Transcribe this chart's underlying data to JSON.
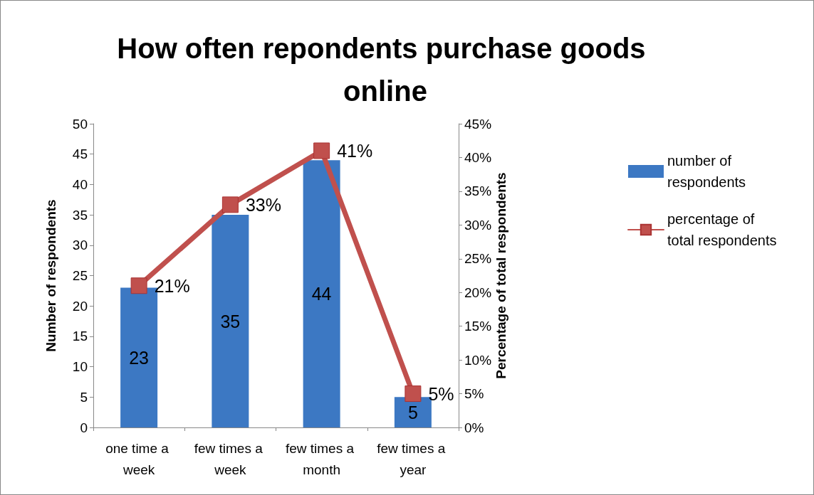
{
  "chart_data": {
    "type": "bar",
    "title": "How often repondents purchase goods online",
    "ylabel": "Number of respondents",
    "y2label": "Percentage of total respondents",
    "categories": [
      "one time a week",
      "few times a week",
      "few times a month",
      "few times a year"
    ],
    "series": [
      {
        "name": "number of respondents",
        "color": "#3c78c3",
        "values": [
          23,
          35,
          44,
          5
        ],
        "value_labels": [
          "23",
          "35",
          "44",
          "5"
        ]
      },
      {
        "name": "percentage of total respondents",
        "type": "line",
        "axis": "y2",
        "color": "#c0504d",
        "values": [
          21,
          33,
          41,
          5
        ],
        "value_labels": [
          "21%",
          "33%",
          "41%",
          "5%"
        ]
      }
    ],
    "ylim": [
      0,
      50
    ],
    "yticks": [
      0,
      5,
      10,
      15,
      20,
      25,
      30,
      35,
      40,
      45,
      50
    ],
    "y2lim": [
      0,
      45
    ],
    "y2ticks": [
      {
        "value": 0,
        "label": "0%"
      },
      {
        "value": 5,
        "label": "5%"
      },
      {
        "value": 10,
        "label": "10%"
      },
      {
        "value": 15,
        "label": "15%"
      },
      {
        "value": 20,
        "label": "20%"
      },
      {
        "value": 25,
        "label": "25%"
      },
      {
        "value": 30,
        "label": "30%"
      },
      {
        "value": 35,
        "label": "35%"
      },
      {
        "value": 40,
        "label": "40%"
      },
      {
        "value": 45,
        "label": "45%"
      }
    ],
    "grid": false,
    "legend": "right",
    "marker": "square",
    "line_style": "solid"
  }
}
